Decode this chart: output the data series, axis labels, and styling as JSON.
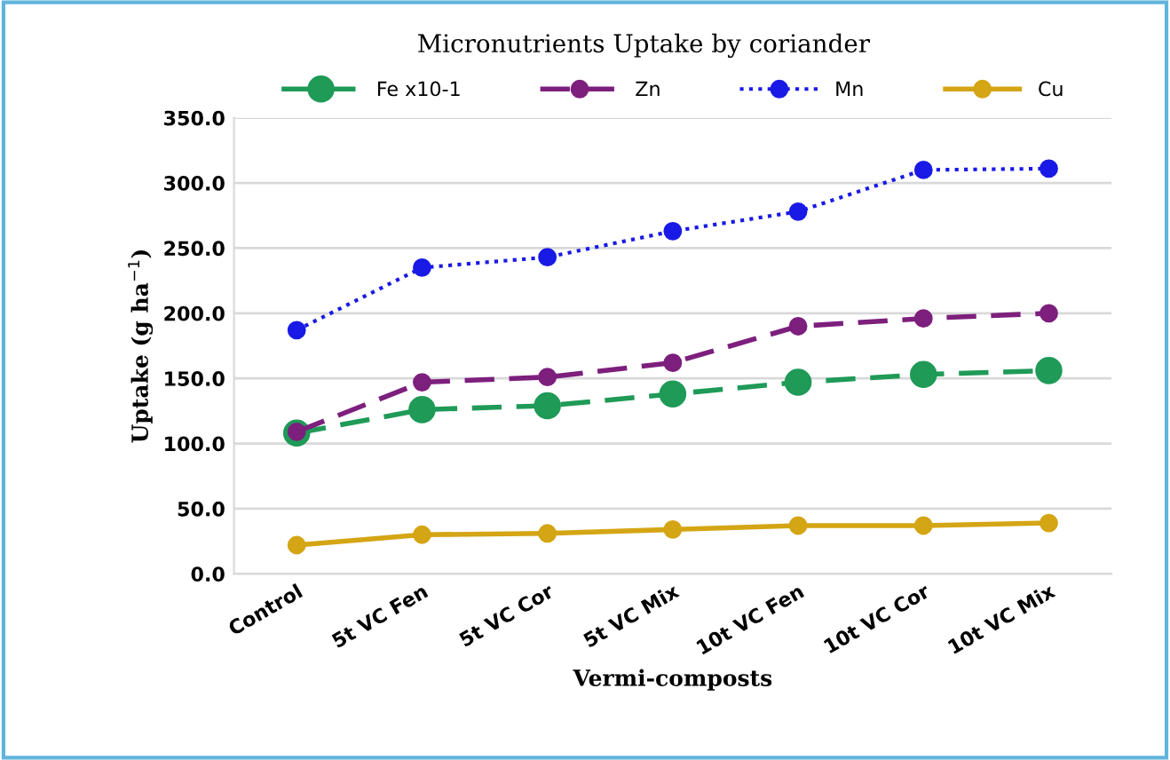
{
  "chart_data": {
    "type": "line",
    "title": "Micronutrients Uptake by coriander",
    "xlabel": "Vermi-composts",
    "ylabel": "Uptake (g ha$^{−1}$)",
    "categories": [
      "Control",
      "5t VC Fen",
      "5t VC Cor",
      "5t VC Mix",
      "10t VC Fen",
      "10t VC Cor",
      "10t VC Mix"
    ],
    "series": [
      {
        "name": "Fe x10-1",
        "color": "#1f9a57",
        "line_style": "dashed",
        "values": [
          108,
          126,
          129,
          138,
          147,
          153,
          156
        ]
      },
      {
        "name": "Zn",
        "color": "#7d1f7d",
        "line_style": "dashed",
        "values": [
          109,
          147,
          151,
          162,
          190,
          196,
          200
        ]
      },
      {
        "name": "Mn",
        "color": "#1a1ae6",
        "line_style": "dotted",
        "values": [
          187,
          235,
          243,
          263,
          278,
          310,
          311
        ]
      },
      {
        "name": "Cu",
        "color": "#d4a514",
        "line_style": "solid",
        "values": [
          22,
          30,
          31,
          34,
          37,
          37,
          39
        ]
      }
    ],
    "ylim": [
      0,
      350
    ],
    "yticks": [
      {
        "value": 0,
        "label": "0.0"
      },
      {
        "value": 50,
        "label": "50.0"
      },
      {
        "value": 100,
        "label": "100.0"
      },
      {
        "value": 150,
        "label": "150.0"
      },
      {
        "value": 200,
        "label": "200.0"
      },
      {
        "value": 250,
        "label": "250.0"
      },
      {
        "value": 300,
        "label": "300.0"
      },
      {
        "value": 350,
        "label": "350.0"
      }
    ],
    "grid": "y",
    "legend": "top",
    "marker": "circle"
  }
}
